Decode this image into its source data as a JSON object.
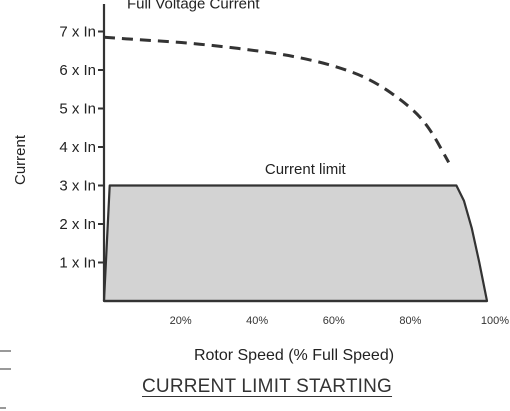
{
  "chart_data": {
    "type": "line",
    "title": "CURRENT LIMIT STARTING",
    "xlabel": "Rotor Speed (% Full Speed)",
    "ylabel": "Current",
    "x_ticks": [
      "20%",
      "40%",
      "60%",
      "80%",
      "100%"
    ],
    "y_ticks": [
      "1 x In",
      "2 x In",
      "3 x In",
      "4 x In",
      "5 x In",
      "6 x In",
      "7 x In"
    ],
    "xlim": [
      0,
      100
    ],
    "ylim": [
      0,
      7
    ],
    "grid": false,
    "series": [
      {
        "name": "Full Voltage Current",
        "style": "dashed",
        "x": [
          0,
          10,
          20,
          30,
          40,
          50,
          60,
          70,
          80,
          85,
          90
        ],
        "y": [
          6.85,
          6.78,
          6.72,
          6.62,
          6.5,
          6.35,
          6.12,
          5.75,
          5.05,
          4.5,
          3.6
        ]
      },
      {
        "name": "Current limit",
        "style": "filled",
        "fill": "#d3d3d3",
        "x": [
          0,
          1.5,
          92,
          94,
          96,
          98,
          100,
          100,
          0
        ],
        "y": [
          0,
          3,
          3,
          2.6,
          1.9,
          1.0,
          0,
          0,
          0
        ]
      }
    ],
    "annotations": [
      {
        "text": "Full Voltage Current",
        "x": 6,
        "y": 7.6
      },
      {
        "text": "Current limit",
        "x": 42,
        "y": 3.3
      }
    ]
  },
  "colors": {
    "axis": "#333333",
    "fill": "#d3d3d3",
    "text": "#222222"
  }
}
